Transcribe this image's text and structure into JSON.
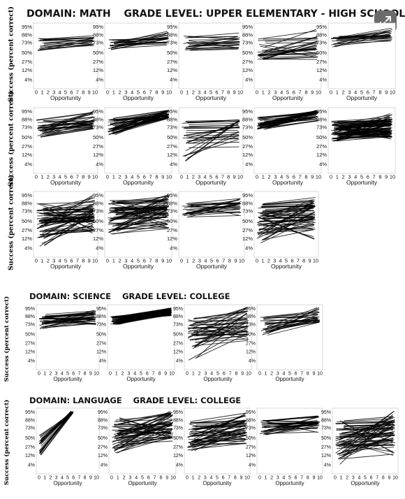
{
  "headers": {
    "math": {
      "domain": "DOMAIN: MATH",
      "grade": "GRADE LEVEL: UPPER ELEMENTARY - HIGH SCHOOL"
    },
    "science": {
      "domain": "DOMAIN: SCIENCE",
      "grade": "GRADE LEVEL: COLLEGE"
    },
    "language": {
      "domain": "DOMAIN: LANGUAGE",
      "grade": "GRADE LEVEL: COLLEGE"
    }
  },
  "ylabel": "Success (percent correct)",
  "xlabel": "Opportunity",
  "yticks": [
    "95%",
    "88%",
    "73%",
    "50%",
    "27%",
    "12%",
    "4%"
  ],
  "xticks": [
    "0",
    "1",
    "2",
    "3",
    "4",
    "5",
    "6",
    "7",
    "8",
    "9",
    "10"
  ],
  "expand_icon": "expand-arrows-icon",
  "chart_data": [
    {
      "type": "line",
      "domain": "DOMAIN: MATH",
      "row": 1,
      "panel": 1,
      "x_range": [
        0,
        10
      ],
      "n_lines": 18,
      "start_range": [
        55,
        82
      ],
      "end_range": [
        62,
        90
      ],
      "ylim": [
        "4%",
        "95%"
      ]
    },
    {
      "type": "line",
      "domain": "DOMAIN: MATH",
      "row": 1,
      "panel": 2,
      "x_range": [
        0,
        10
      ],
      "n_lines": 20,
      "start_range": [
        57,
        84
      ],
      "end_range": [
        64,
        92
      ],
      "ylim": [
        "4%",
        "95%"
      ]
    },
    {
      "type": "line",
      "domain": "DOMAIN: MATH",
      "row": 1,
      "panel": 3,
      "x_range": [
        0,
        10
      ],
      "n_lines": 20,
      "start_range": [
        55,
        86
      ],
      "end_range": [
        55,
        86
      ],
      "ylim": [
        "4%",
        "95%"
      ]
    },
    {
      "type": "line",
      "domain": "DOMAIN: MATH",
      "row": 1,
      "panel": 4,
      "x_range": [
        0,
        10
      ],
      "n_lines": 26,
      "start_range": [
        30,
        82
      ],
      "end_range": [
        30,
        94
      ],
      "ylim": [
        "4%",
        "95%"
      ]
    },
    {
      "type": "line",
      "domain": "DOMAIN: MATH",
      "row": 1,
      "panel": 5,
      "x_range": [
        0,
        10
      ],
      "n_lines": 20,
      "start_range": [
        62,
        86
      ],
      "end_range": [
        74,
        94
      ],
      "ylim": [
        "4%",
        "95%"
      ]
    },
    {
      "type": "line",
      "domain": "DOMAIN: MATH",
      "row": 2,
      "panel": 1,
      "x_range": [
        0,
        10
      ],
      "n_lines": 35,
      "start_range": [
        50,
        88
      ],
      "end_range": [
        70,
        96
      ],
      "ylim": [
        "4%",
        "95%"
      ]
    },
    {
      "type": "line",
      "domain": "DOMAIN: MATH",
      "row": 2,
      "panel": 2,
      "x_range": [
        0,
        10
      ],
      "n_lines": 40,
      "start_range": [
        55,
        90
      ],
      "end_range": [
        88,
        97
      ],
      "ylim": [
        "4%",
        "95%"
      ]
    },
    {
      "type": "line",
      "domain": "DOMAIN: MATH",
      "row": 2,
      "panel": 3,
      "x_range": [
        0,
        10
      ],
      "n_lines": 30,
      "start_range": [
        4,
        88
      ],
      "end_range": [
        12,
        92
      ],
      "ylim": [
        "4%",
        "95%"
      ]
    },
    {
      "type": "line",
      "domain": "DOMAIN: MATH",
      "row": 2,
      "panel": 4,
      "x_range": [
        0,
        10
      ],
      "n_lines": 35,
      "start_range": [
        68,
        92
      ],
      "end_range": [
        85,
        97
      ],
      "ylim": [
        "4%",
        "95%"
      ]
    },
    {
      "type": "line",
      "domain": "DOMAIN: MATH",
      "row": 2,
      "panel": 5,
      "x_range": [
        0,
        10
      ],
      "n_lines": 90,
      "start_range": [
        40,
        85
      ],
      "end_range": [
        45,
        94
      ],
      "ylim": [
        "4%",
        "95%"
      ]
    },
    {
      "type": "line",
      "domain": "DOMAIN: MATH",
      "row": 3,
      "panel": 1,
      "x_range": [
        0,
        10
      ],
      "n_lines": 60,
      "start_range": [
        4,
        88
      ],
      "end_range": [
        20,
        96
      ],
      "ylim": [
        "4%",
        "95%"
      ]
    },
    {
      "type": "line",
      "domain": "DOMAIN: MATH",
      "row": 3,
      "panel": 2,
      "x_range": [
        0,
        10
      ],
      "n_lines": 70,
      "start_range": [
        20,
        92
      ],
      "end_range": [
        25,
        96
      ],
      "ylim": [
        "4%",
        "95%"
      ]
    },
    {
      "type": "line",
      "domain": "DOMAIN: MATH",
      "row": 3,
      "panel": 3,
      "x_range": [
        0,
        10
      ],
      "n_lines": 25,
      "start_range": [
        55,
        90
      ],
      "end_range": [
        60,
        93
      ],
      "ylim": [
        "4%",
        "95%"
      ]
    },
    {
      "type": "line",
      "domain": "DOMAIN: MATH",
      "row": 3,
      "panel": 4,
      "x_range": [
        0,
        10
      ],
      "n_lines": 60,
      "start_range": [
        8,
        88
      ],
      "end_range": [
        8,
        92
      ],
      "ylim": [
        "4%",
        "95%"
      ]
    },
    {
      "type": "line",
      "domain": "DOMAIN: SCIENCE",
      "row": 1,
      "panel": 1,
      "x_range": [
        0,
        10
      ],
      "n_lines": 30,
      "start_range": [
        62,
        90
      ],
      "end_range": [
        72,
        94
      ],
      "ylim": [
        "4%",
        "95%"
      ]
    },
    {
      "type": "line",
      "domain": "DOMAIN: SCIENCE",
      "row": 1,
      "panel": 2,
      "x_range": [
        0,
        10
      ],
      "n_lines": 80,
      "start_range": [
        72,
        88
      ],
      "end_range": [
        88,
        96
      ],
      "ylim": [
        "4%",
        "95%"
      ]
    },
    {
      "type": "line",
      "domain": "DOMAIN: SCIENCE",
      "row": 1,
      "panel": 3,
      "x_range": [
        0,
        10
      ],
      "n_lines": 40,
      "start_range": [
        4,
        85
      ],
      "end_range": [
        30,
        97
      ],
      "ylim": [
        "4%",
        "95%"
      ]
    },
    {
      "type": "line",
      "domain": "DOMAIN: SCIENCE",
      "row": 1,
      "panel": 4,
      "x_range": [
        0,
        10
      ],
      "n_lines": 30,
      "start_range": [
        45,
        88
      ],
      "end_range": [
        75,
        97
      ],
      "ylim": [
        "4%",
        "95%"
      ]
    },
    {
      "type": "line",
      "domain": "DOMAIN: LANGUAGE",
      "row": 1,
      "panel": 1,
      "x_range": [
        0,
        6
      ],
      "n_lines": 25,
      "start_range": [
        10,
        55
      ],
      "end_range": [
        94,
        97
      ],
      "ylim": [
        "4%",
        "95%"
      ]
    },
    {
      "type": "line",
      "domain": "DOMAIN: LANGUAGE",
      "row": 1,
      "panel": 2,
      "x_range": [
        0,
        10
      ],
      "n_lines": 50,
      "start_range": [
        15,
        90
      ],
      "end_range": [
        40,
        97
      ],
      "ylim": [
        "4%",
        "95%"
      ]
    },
    {
      "type": "line",
      "domain": "DOMAIN: LANGUAGE",
      "row": 1,
      "panel": 3,
      "x_range": [
        0,
        10
      ],
      "n_lines": 50,
      "start_range": [
        20,
        88
      ],
      "end_range": [
        35,
        95
      ],
      "ylim": [
        "4%",
        "95%"
      ]
    },
    {
      "type": "line",
      "domain": "DOMAIN: LANGUAGE",
      "row": 1,
      "panel": 4,
      "x_range": [
        0,
        10
      ],
      "n_lines": 30,
      "start_range": [
        55,
        88
      ],
      "end_range": [
        62,
        92
      ],
      "ylim": [
        "4%",
        "95%"
      ]
    },
    {
      "type": "line",
      "domain": "DOMAIN: LANGUAGE",
      "row": 1,
      "panel": 5,
      "x_range": [
        0,
        10
      ],
      "n_lines": 70,
      "start_range": [
        4,
        92
      ],
      "end_range": [
        12,
        97
      ],
      "ylim": [
        "4%",
        "95%"
      ]
    }
  ]
}
